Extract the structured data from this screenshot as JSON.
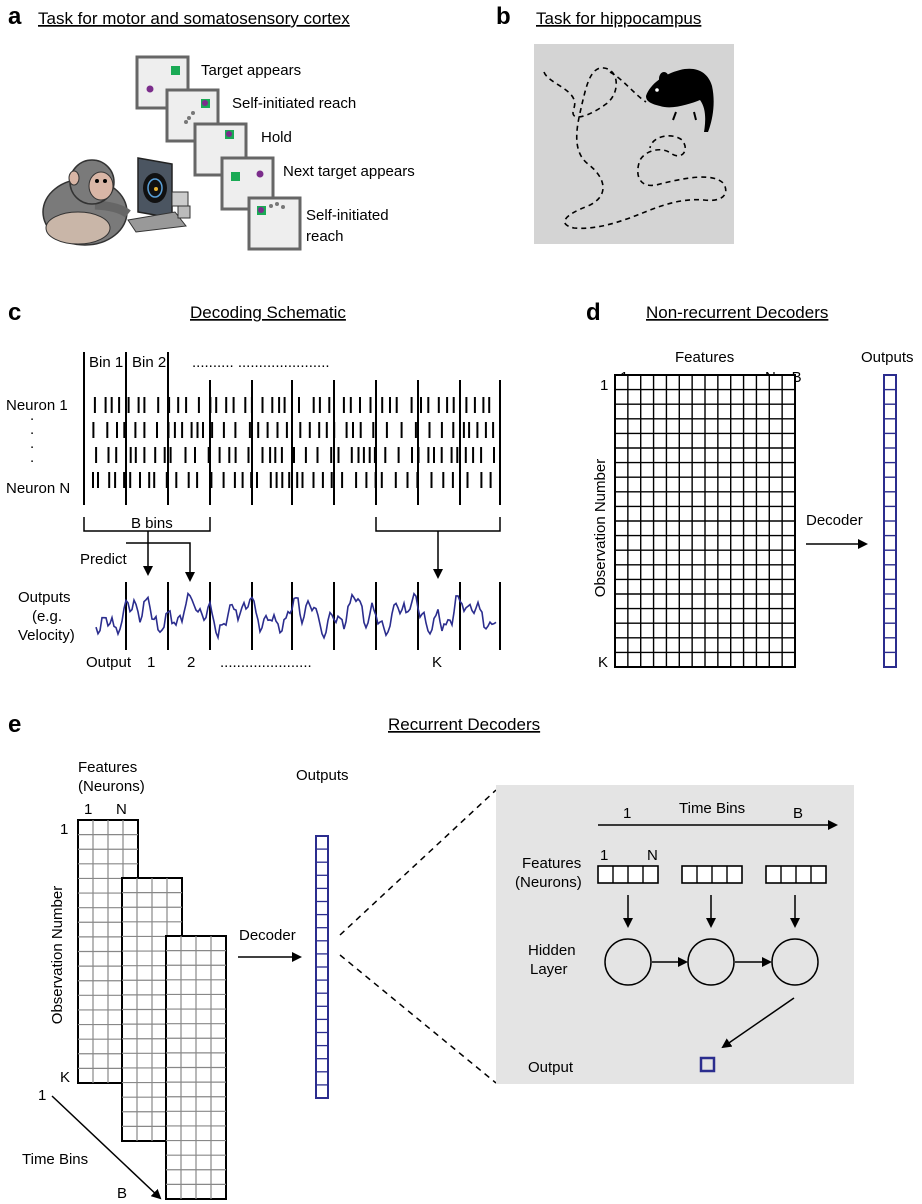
{
  "panel_a": {
    "letter": "a",
    "title": "Task for motor and somatosensory cortex",
    "steps": [
      "Target appears",
      "Self-initiated reach",
      "Hold",
      "Next target appears",
      "Self-initiated",
      "reach"
    ],
    "colors": {
      "target": "#1aaa55",
      "cursor": "#7b2d8b",
      "frame": "#666666",
      "screen": "#eeeeee"
    }
  },
  "panel_b": {
    "letter": "b",
    "title": "Task for hippocampus",
    "colors": {
      "arena": "#d4d4d4"
    }
  },
  "panel_c": {
    "letter": "c",
    "title": "Decoding Schematic",
    "bin_labels": [
      "Bin 1",
      "Bin 2"
    ],
    "bin_dots": "..........  ......................",
    "neuron_labels": [
      "Neuron 1",
      "Neuron N"
    ],
    "bbins_label": "B bins",
    "predict_label": "Predict",
    "outputs_label": [
      "Outputs",
      "(e.g.",
      "Velocity)"
    ],
    "output_axis": {
      "label": "Output",
      "first": "1",
      "second": "2",
      "dots": "......................",
      "last": "K"
    },
    "colors": {
      "trace": "#2b2d8e"
    }
  },
  "panel_d": {
    "letter": "d",
    "title": "Non-recurrent Decoders",
    "features_label": "Features",
    "outputs_label": "Outputs",
    "col_first": "1",
    "col_last": "N x B",
    "row_first": "1",
    "row_last": "K",
    "ylabel": "Observation Number",
    "decoder_label": "Decoder",
    "colors": {
      "output_cells": "#2b2d8e"
    }
  },
  "panel_e": {
    "letter": "e",
    "title": "Recurrent Decoders",
    "features_label": [
      "Features",
      "(Neurons)"
    ],
    "col_first": "1",
    "col_last": "N",
    "row_first": "1",
    "row_last": "K",
    "ylabel": "Observation Number",
    "timebins_first": "1",
    "timebins_label": "Time Bins",
    "timebins_last": "B",
    "outputs_label": "Outputs",
    "decoder_label": "Decoder",
    "inset": {
      "time_first": "1",
      "time_label": "Time Bins",
      "time_last": "B",
      "features_label": [
        "Features",
        "(Neurons)"
      ],
      "feat_first": "1",
      "feat_last": "N",
      "hidden_label": [
        "Hidden",
        "Layer"
      ],
      "output_label": "Output"
    },
    "colors": {
      "inset_bg": "#e4e4e4",
      "output_cells": "#2b2d8e"
    }
  }
}
